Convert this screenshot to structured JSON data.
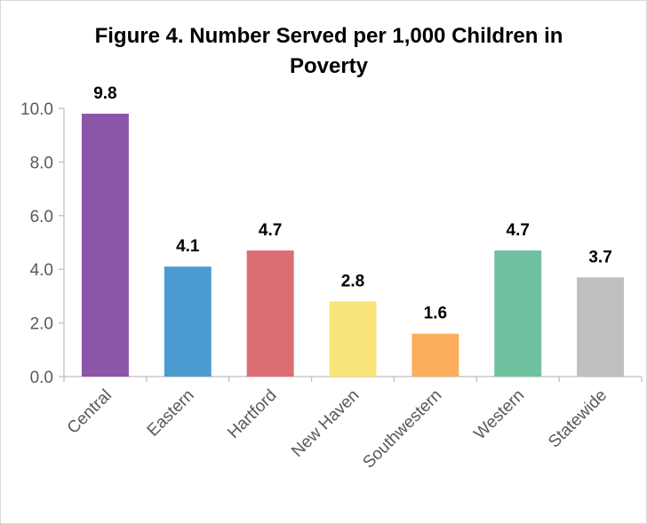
{
  "chart_data": {
    "type": "bar",
    "title": "Figure 4. Number Served per 1,000 Children in Poverty",
    "xlabel": "",
    "ylabel": "",
    "categories": [
      "Central",
      "Eastern",
      "Hartford",
      "New Haven",
      "Southwestern",
      "Western",
      "Statewide"
    ],
    "values": [
      9.8,
      4.1,
      4.7,
      2.8,
      1.6,
      4.7,
      3.7
    ],
    "data_labels": [
      "9.8",
      "4.1",
      "4.7",
      "2.8",
      "1.6",
      "4.7",
      "3.7"
    ],
    "colors": [
      "#8b55a8",
      "#4b9bd1",
      "#dd6d74",
      "#f9e47a",
      "#fcae5e",
      "#6fc1a0",
      "#bfbfbf"
    ],
    "ylim": [
      0,
      10
    ],
    "yticks": [
      0,
      2,
      4,
      6,
      8,
      10
    ],
    "ytick_labels": [
      "0.0",
      "2.0",
      "4.0",
      "6.0",
      "8.0",
      "10.0"
    ],
    "grid": false,
    "legend": "none",
    "axis_color": "#bfbfbf"
  }
}
